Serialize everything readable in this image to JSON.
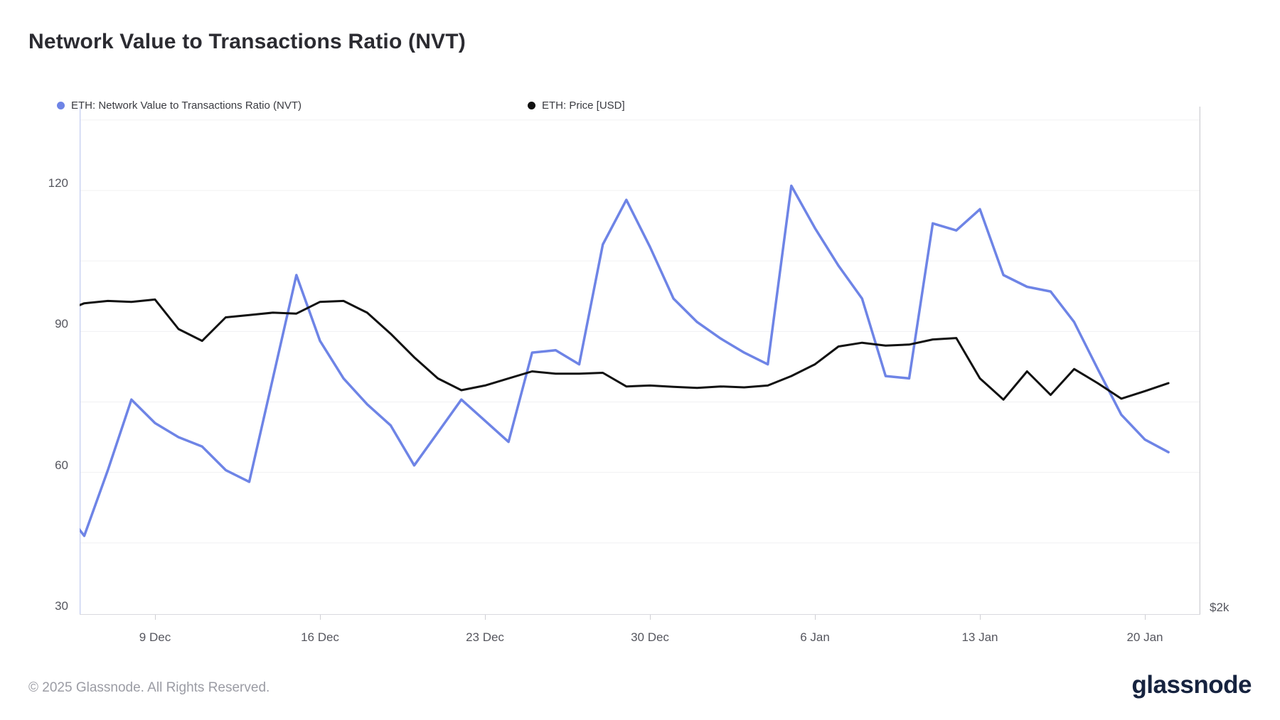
{
  "header": {
    "title": "Network Value to Transactions Ratio (NVT)"
  },
  "legend": [
    {
      "label": "ETH: Network Value to Transactions Ratio (NVT)",
      "color": "#6e84e6"
    },
    {
      "label": "ETH: Price [USD]",
      "color": "#111111"
    }
  ],
  "chart_data": {
    "type": "line",
    "title": "Network Value to Transactions Ratio (NVT)",
    "x": [
      "5 Dec",
      "6 Dec",
      "7 Dec",
      "8 Dec",
      "9 Dec",
      "10 Dec",
      "11 Dec",
      "12 Dec",
      "13 Dec",
      "14 Dec",
      "15 Dec",
      "16 Dec",
      "17 Dec",
      "18 Dec",
      "19 Dec",
      "20 Dec",
      "21 Dec",
      "22 Dec",
      "23 Dec",
      "24 Dec",
      "25 Dec",
      "26 Dec",
      "27 Dec",
      "28 Dec",
      "29 Dec",
      "30 Dec",
      "31 Dec",
      "1 Jan",
      "2 Jan",
      "3 Jan",
      "4 Jan",
      "5 Jan",
      "6 Jan",
      "7 Jan",
      "8 Jan",
      "9 Jan",
      "10 Jan",
      "11 Jan",
      "12 Jan",
      "13 Jan",
      "14 Jan",
      "15 Jan",
      "16 Jan",
      "17 Jan",
      "18 Jan",
      "19 Jan",
      "20 Jan",
      "21 Jan"
    ],
    "series": [
      {
        "name": "ETH: Network Value to Transactions Ratio (NVT)",
        "color": "#6e84e6",
        "width": 3.5,
        "values": [
          53,
          46.5,
          60.5,
          75.5,
          70.5,
          67.5,
          65.5,
          60.5,
          58,
          80,
          102,
          88,
          80,
          74.5,
          70,
          61.5,
          68.5,
          75.5,
          71,
          66.5,
          85.5,
          86,
          83,
          108.5,
          118,
          108,
          97,
          92,
          88.5,
          85.5,
          83,
          121,
          112,
          104,
          97,
          80.5,
          80,
          113,
          111.5,
          116,
          102,
          99.5,
          98.5,
          92,
          82,
          72.3,
          67,
          64.3
        ]
      },
      {
        "name": "ETH: Price [USD]",
        "color": "#111111",
        "width": 3,
        "values": [
          94,
          96,
          96.5,
          96.3,
          96.8,
          90.5,
          88,
          93,
          93.5,
          94,
          93.8,
          96.3,
          96.5,
          94,
          89.5,
          84.5,
          80,
          77.5,
          78.5,
          80,
          81.5,
          81,
          81,
          81.2,
          78.3,
          78.5,
          78.2,
          78,
          78.3,
          78.1,
          78.5,
          80.5,
          83,
          86.8,
          87.6,
          87,
          87.2,
          88.3,
          88.6,
          80,
          75.5,
          81.5,
          76.5,
          82,
          79,
          75.7,
          77.3,
          79
        ]
      }
    ],
    "y_ticks": [
      120,
      90,
      60,
      30
    ],
    "gridline_values": [
      135,
      120,
      105,
      90,
      75,
      60,
      45
    ],
    "x_tick_labels": [
      {
        "label": "9 Dec",
        "index": 4
      },
      {
        "label": "16 Dec",
        "index": 11
      },
      {
        "label": "23 Dec",
        "index": 18
      },
      {
        "label": "30 Dec",
        "index": 25
      },
      {
        "label": "6 Jan",
        "index": 32
      },
      {
        "label": "13 Jan",
        "index": 39
      },
      {
        "label": "20 Jan",
        "index": 46
      }
    ],
    "right_axis_label": "$2k",
    "ylim": [
      29.7,
      137.9
    ],
    "grid": "horizontal-only",
    "legend_position": "top-left",
    "colors": {
      "grid": "#f0f0f2",
      "left_axis_line": "#c3cdf0",
      "right_axis_line": "#cfcfd4",
      "bottom_axis_line": "#d9d9de",
      "tick": "#cfcfd4"
    }
  },
  "footer": {
    "copyright": "© 2025 Glassnode. All Rights Reserved.",
    "brand": "glassnode"
  }
}
